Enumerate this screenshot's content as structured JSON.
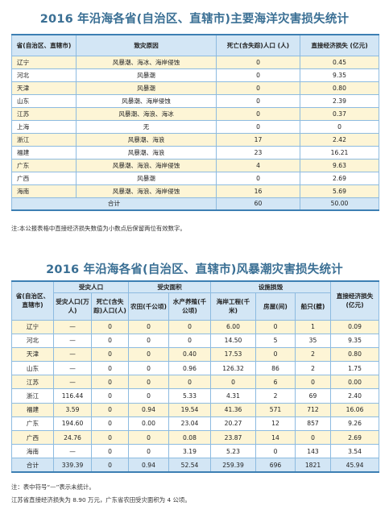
{
  "table1": {
    "title": "2016 年沿海各省(自治区、直辖市)主要海洋灾害损失统计",
    "headers": [
      "省(自治区、直辖市)",
      "致灾原因",
      "死亡(含失踪)人口 (人)",
      "直接经济损失 (亿元)"
    ],
    "rows": [
      [
        "辽宁",
        "风暴潮、海冰、海岸侵蚀",
        "0",
        "0.45"
      ],
      [
        "河北",
        "风暴潮",
        "0",
        "9.35"
      ],
      [
        "天津",
        "风暴潮",
        "0",
        "0.80"
      ],
      [
        "山东",
        "风暴潮、海岸侵蚀",
        "0",
        "2.39"
      ],
      [
        "江苏",
        "风暴潮、海浪、海冰",
        "0",
        "0.37"
      ],
      [
        "上海",
        "无",
        "0",
        "0"
      ],
      [
        "浙江",
        "风暴潮、海浪",
        "17",
        "2.42"
      ],
      [
        "福建",
        "风暴潮、海浪",
        "23",
        "16.21"
      ],
      [
        "广东",
        "风暴潮、海浪、海岸侵蚀",
        "4",
        "9.63"
      ],
      [
        "广西",
        "风暴潮",
        "0",
        "2.69"
      ],
      [
        "海南",
        "风暴潮、海浪、海岸侵蚀",
        "16",
        "5.69"
      ]
    ],
    "total": [
      "合计",
      "60",
      "50.00"
    ],
    "note": "注:本公报表格中直接经济损失数值为小数点后保留两位有效数字。"
  },
  "table2": {
    "title": "2016 年沿海各省(自治区、直辖市)风暴潮灾害损失统计",
    "header_top": [
      "省(自治区、直辖市)",
      "受灾人口",
      "受灾面积",
      "设施损毁",
      "直接经济损失(亿元)"
    ],
    "header_sub": [
      "受灾人口(万人)",
      "死亡(含失踪)人口(人)",
      "农田(千公顷)",
      "水产养殖(千公顷)",
      "海岸工程(千米)",
      "房屋(间)",
      "船只(艘)"
    ],
    "rows": [
      [
        "辽宁",
        "—",
        "0",
        "0",
        "0",
        "6.00",
        "0",
        "1",
        "0.09"
      ],
      [
        "河北",
        "—",
        "0",
        "0",
        "0",
        "14.50",
        "5",
        "35",
        "9.35"
      ],
      [
        "天津",
        "—",
        "0",
        "0",
        "0.40",
        "17.53",
        "0",
        "2",
        "0.80"
      ],
      [
        "山东",
        "—",
        "0",
        "0",
        "0.96",
        "126.32",
        "86",
        "2",
        "1.75"
      ],
      [
        "江苏",
        "—",
        "0",
        "0",
        "0",
        "0",
        "6",
        "0",
        "0.00"
      ],
      [
        "浙江",
        "116.44",
        "0",
        "0",
        "5.33",
        "4.31",
        "2",
        "69",
        "2.40"
      ],
      [
        "福建",
        "3.59",
        "0",
        "0.94",
        "19.54",
        "41.36",
        "571",
        "712",
        "16.06"
      ],
      [
        "广东",
        "194.60",
        "0",
        "0.00",
        "23.04",
        "20.27",
        "12",
        "857",
        "9.26"
      ],
      [
        "广西",
        "24.76",
        "0",
        "0",
        "0.08",
        "23.87",
        "14",
        "0",
        "2.69"
      ],
      [
        "海南",
        "—",
        "0",
        "0",
        "3.19",
        "5.23",
        "0",
        "143",
        "3.54"
      ]
    ],
    "total": [
      "合计",
      "339.39",
      "0",
      "0.94",
      "52.54",
      "259.39",
      "696",
      "1821",
      "45.94"
    ],
    "notes": [
      "注：表中符号“—”表示未统计。",
      "江苏省直接经济损失为 8.90 万元，广东省农田受灾面积为 4 公顷。"
    ]
  }
}
